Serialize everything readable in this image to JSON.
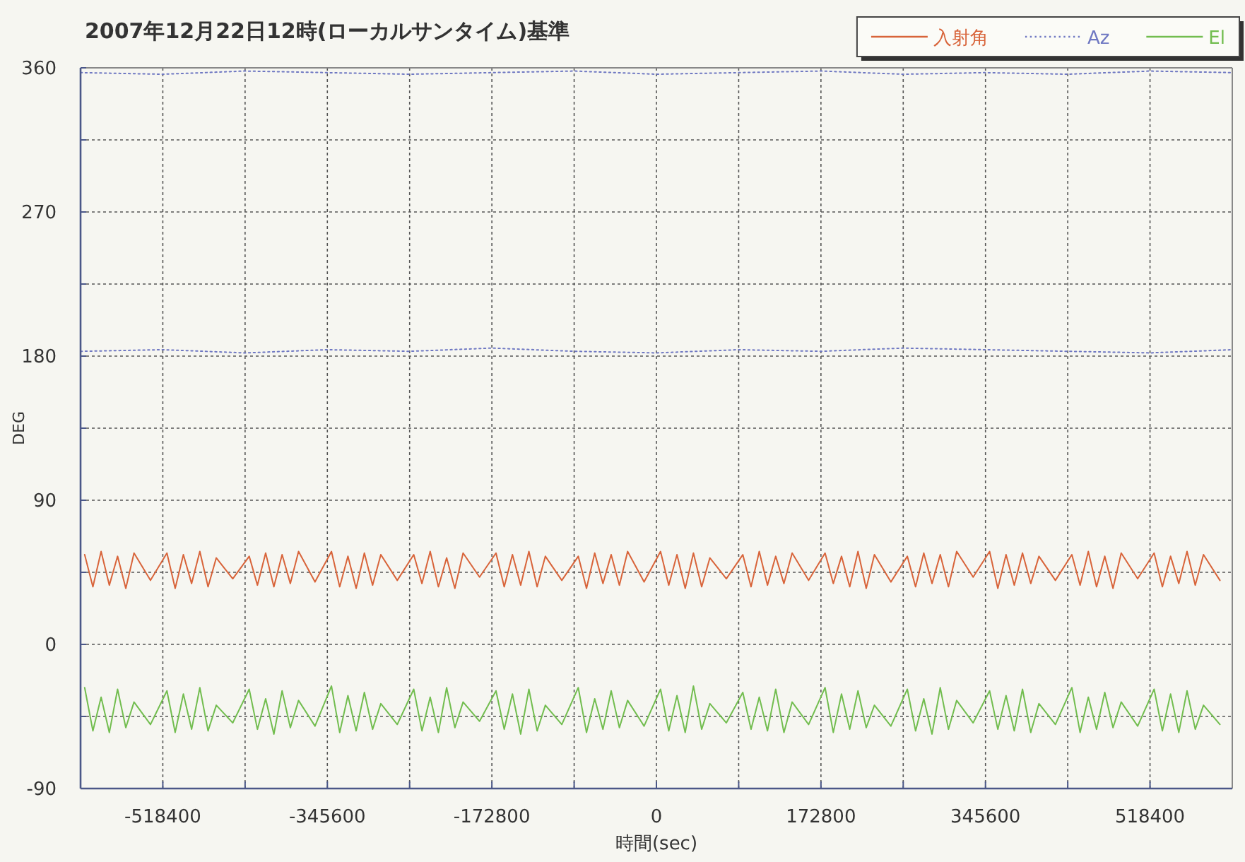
{
  "chart_data": {
    "type": "line",
    "title": "2007年12月22日12時(ローカルサンタイム)基準",
    "xlabel": "時間(sec)",
    "ylabel": "DEG",
    "xlim": [
      -604800,
      604800
    ],
    "ylim": [
      -90,
      360
    ],
    "xticks": [
      {
        "value": -518400,
        "label": "-518400"
      },
      {
        "value": -432000,
        "label": null
      },
      {
        "value": -345600,
        "label": "-345600"
      },
      {
        "value": -259200,
        "label": null
      },
      {
        "value": -172800,
        "label": "-172800"
      },
      {
        "value": -86400,
        "label": null
      },
      0,
      {
        "value": 86400,
        "label": null
      },
      172800,
      {
        "value": 259200,
        "label": null
      },
      345600,
      {
        "value": 432000,
        "label": null
      },
      518400
    ],
    "yticks": [
      -90,
      {
        "value": -45,
        "label": null
      },
      0,
      {
        "value": 45,
        "label": null
      },
      90,
      {
        "value": 135,
        "label": null
      },
      180,
      {
        "value": 225,
        "label": null
      },
      270,
      {
        "value": 315,
        "label": null
      },
      360
    ],
    "grid": true,
    "legend": "top right",
    "x": [
      -600480,
      -591840,
      -583200,
      -574560,
      -565920,
      -557280,
      -548640,
      -531360,
      -514080,
      -505440,
      -496800,
      -488160,
      -479520,
      -470880,
      -462240,
      -444960,
      -427680,
      -419040,
      -410400,
      -401760,
      -393120,
      -384480,
      -375840,
      -358560,
      -341280,
      -332640,
      -324000,
      -315360,
      -306720,
      -298080,
      -289440,
      -272160,
      -254880,
      -246240,
      -237600,
      -228960,
      -220320,
      -211680,
      -203040,
      -185760,
      -168480,
      -159840,
      -151200,
      -142560,
      -133920,
      -125280,
      -116640,
      -99360,
      -82080,
      -73440,
      -64800,
      -56160,
      -47520,
      -38880,
      -30240,
      -12960,
      4320,
      12960,
      21600,
      30240,
      38880,
      47520,
      56160,
      73440,
      90720,
      99360,
      108000,
      116640,
      125280,
      133920,
      142560,
      159840,
      177120,
      185760,
      194400,
      203040,
      211680,
      220320,
      228960,
      246240,
      263520,
      272160,
      280800,
      289440,
      298080,
      306720,
      315360,
      332640,
      349920,
      358560,
      367200,
      375840,
      384480,
      393120,
      401760,
      419040,
      436320,
      444960,
      453600,
      462240,
      470880,
      479520,
      488160,
      505440,
      522720,
      531360,
      540000,
      548640,
      557280,
      565920,
      574560,
      591840
    ],
    "series": [
      {
        "name": "入射角",
        "color": "#d8643a",
        "values": [
          56,
          36,
          58,
          37,
          55,
          35,
          57,
          40,
          57,
          35,
          56,
          38,
          58,
          36,
          54,
          41,
          55,
          37,
          57,
          36,
          56,
          38,
          58,
          39,
          58,
          36,
          55,
          35,
          57,
          37,
          56,
          40,
          56,
          38,
          58,
          36,
          54,
          35,
          57,
          42,
          57,
          36,
          56,
          37,
          58,
          36,
          55,
          40,
          55,
          35,
          57,
          38,
          56,
          37,
          58,
          39,
          58,
          37,
          56,
          35,
          57,
          36,
          54,
          41,
          56,
          36,
          58,
          37,
          55,
          38,
          57,
          40,
          57,
          38,
          55,
          36,
          58,
          35,
          56,
          39,
          55,
          36,
          57,
          38,
          56,
          36,
          58,
          42,
          58,
          35,
          56,
          37,
          57,
          38,
          55,
          40,
          56,
          37,
          58,
          36,
          55,
          35,
          57,
          41,
          57,
          36,
          55,
          38,
          58,
          37,
          56,
          40
        ]
      },
      {
        "name": "Az",
        "color": "#6f78c2",
        "line_style": "dotted",
        "x": [
          -604800,
          -518400,
          -432000,
          -345600,
          -259200,
          -172800,
          -86400,
          0,
          86400,
          172800,
          259200,
          345600,
          432000,
          518400,
          604800,
          null,
          -604800,
          -518400,
          -432000,
          -345600,
          -259200,
          -172800,
          -86400,
          0,
          86400,
          172800,
          259200,
          345600,
          432000,
          518400,
          604800
        ],
        "values": [
          357,
          356,
          358,
          357,
          356,
          357,
          358,
          356,
          357,
          358,
          356,
          357,
          356,
          358,
          357,
          null,
          183,
          184,
          182,
          184,
          183,
          185,
          183,
          182,
          184,
          183,
          185,
          184,
          183,
          182,
          184
        ]
      },
      {
        "name": "El",
        "color": "#72bd4f",
        "values": [
          -27,
          -54,
          -33,
          -55,
          -28,
          -52,
          -36,
          -50,
          -29,
          -55,
          -31,
          -53,
          -27,
          -54,
          -38,
          -49,
          -28,
          -53,
          -34,
          -56,
          -29,
          -52,
          -35,
          -51,
          -26,
          -55,
          -32,
          -54,
          -30,
          -53,
          -37,
          -50,
          -28,
          -54,
          -33,
          -55,
          -27,
          -52,
          -36,
          -48,
          -29,
          -53,
          -31,
          -56,
          -28,
          -54,
          -38,
          -50,
          -27,
          -55,
          -34,
          -53,
          -29,
          -52,
          -35,
          -51,
          -28,
          -54,
          -32,
          -55,
          -26,
          -53,
          -37,
          -49,
          -30,
          -53,
          -33,
          -54,
          -28,
          -55,
          -36,
          -50,
          -27,
          -55,
          -31,
          -53,
          -29,
          -52,
          -38,
          -51,
          -28,
          -54,
          -34,
          -56,
          -27,
          -53,
          -35,
          -49,
          -29,
          -53,
          -32,
          -54,
          -28,
          -55,
          -37,
          -50,
          -27,
          -55,
          -33,
          -53,
          -30,
          -52,
          -36,
          -51,
          -28,
          -54,
          -31,
          -55,
          -29,
          -53,
          -38,
          -50
        ]
      }
    ]
  }
}
